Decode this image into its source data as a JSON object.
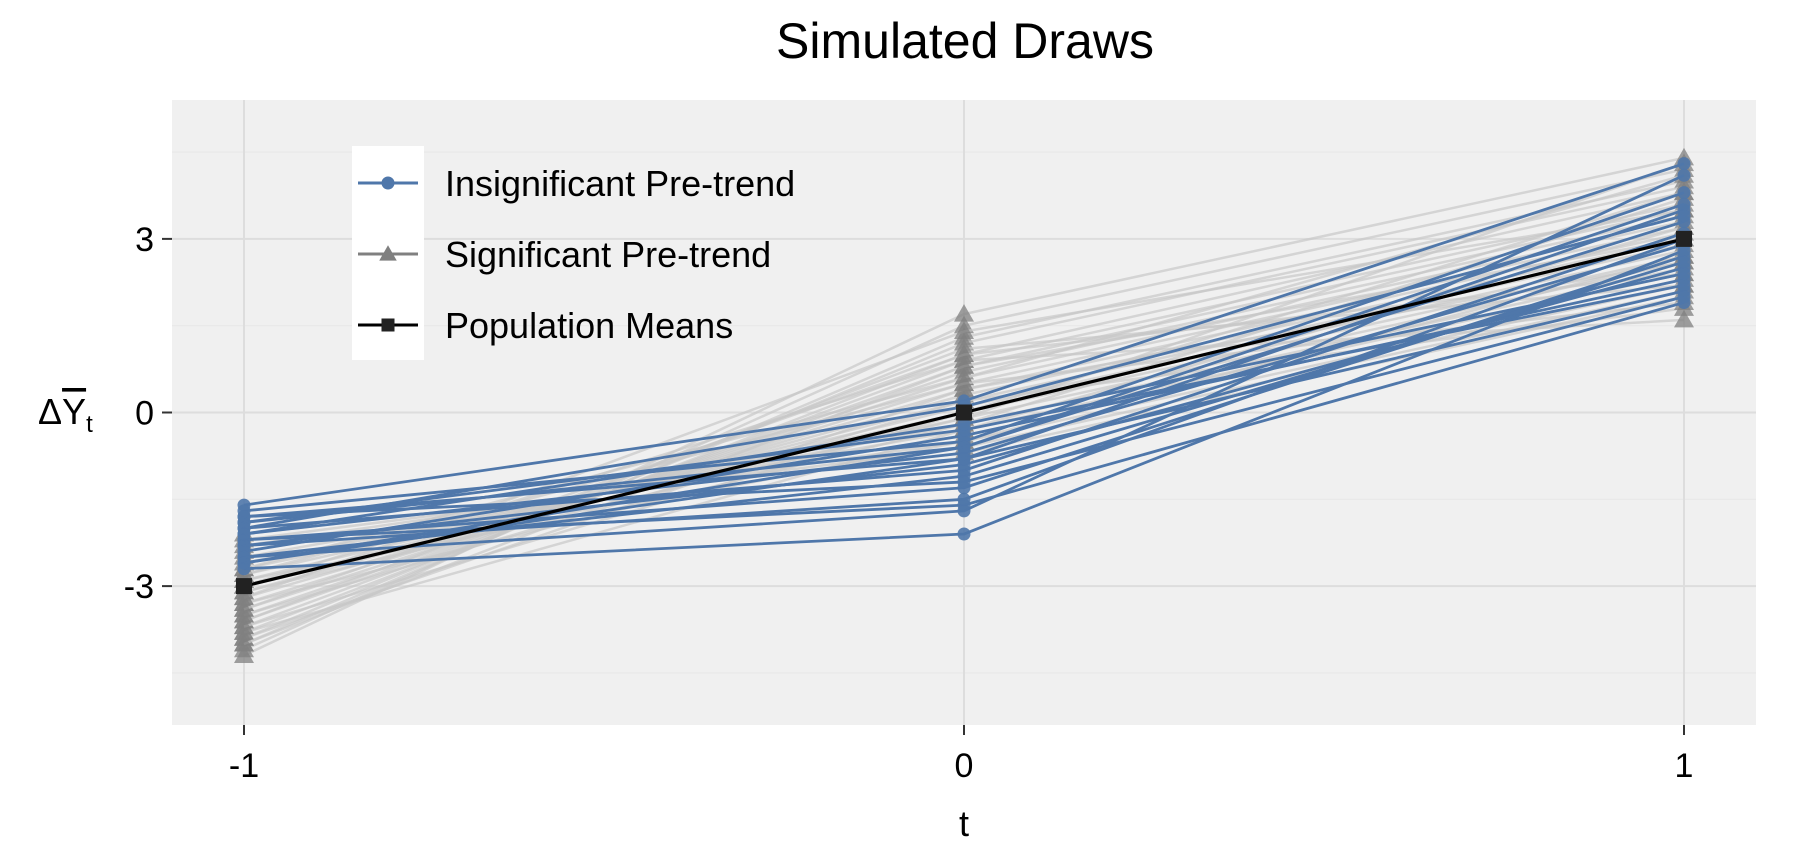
{
  "chart_data": {
    "type": "line",
    "title": "Simulated Draws",
    "xlabel": "t",
    "ylabel": "ΔY̅t",
    "x": [
      -1,
      0,
      1
    ],
    "x_tick_labels": [
      "-1",
      "0",
      "1"
    ],
    "y_tick_values": [
      -3,
      0,
      3
    ],
    "y_tick_labels": [
      "-3",
      "0",
      "3"
    ],
    "xlim": [
      -1.1,
      1.1
    ],
    "ylim": [
      -5.4,
      5.4
    ],
    "grid": true,
    "legend_position": "top-left",
    "colors": {
      "background": "#ffffff",
      "panel": "#f0f0f0",
      "grid_major": "#dddddd",
      "grid_minor": "#e8e8e8",
      "insignificant": "#4f77aa",
      "significant": "#808080",
      "significant_line": "#c8c8c8",
      "population": "#000000"
    },
    "legend": [
      {
        "label": "Insignificant Pre-trend",
        "key": "insignificant",
        "marker": "circle"
      },
      {
        "label": "Significant Pre-trend",
        "key": "significant",
        "marker": "triangle"
      },
      {
        "label": "Population Means",
        "key": "population",
        "marker": "square"
      }
    ],
    "series": [
      {
        "name": "Insignificant Pre-trend",
        "marker": "circle",
        "draws": [
          [
            -1.6,
            0.2,
            4.3
          ],
          [
            -1.7,
            -0.5,
            3.8
          ],
          [
            -1.8,
            -0.8,
            3.5
          ],
          [
            -1.9,
            -0.6,
            3.3
          ],
          [
            -2.0,
            -1.0,
            3.1
          ],
          [
            -2.1,
            -0.7,
            2.9
          ],
          [
            -2.2,
            -1.3,
            2.7
          ],
          [
            -2.3,
            -0.9,
            2.5
          ],
          [
            -2.4,
            -0.4,
            2.3
          ],
          [
            -2.5,
            -1.7,
            4.1
          ],
          [
            -2.6,
            -0.8,
            2.1
          ],
          [
            -2.7,
            -2.1,
            2.8
          ],
          [
            -2.2,
            -1.6,
            1.9
          ],
          [
            -2.0,
            0.1,
            3.4
          ],
          [
            -2.5,
            -1.1,
            2.6
          ],
          [
            -1.9,
            -0.3,
            2.2
          ],
          [
            -2.3,
            -1.5,
            3.0
          ],
          [
            -2.1,
            -0.2,
            2.4
          ],
          [
            -2.6,
            -0.6,
            3.6
          ],
          [
            -1.8,
            -1.2,
            2.0
          ]
        ]
      },
      {
        "name": "Significant Pre-trend",
        "marker": "triangle",
        "draws": [
          [
            -4.2,
            1.7,
            4.4
          ],
          [
            -4.1,
            1.5,
            4.2
          ],
          [
            -4.0,
            1.3,
            4.0
          ],
          [
            -3.9,
            1.2,
            3.9
          ],
          [
            -3.8,
            1.0,
            3.8
          ],
          [
            -3.7,
            0.9,
            3.6
          ],
          [
            -3.6,
            0.8,
            3.5
          ],
          [
            -3.5,
            0.7,
            3.4
          ],
          [
            -3.4,
            0.6,
            3.3
          ],
          [
            -3.3,
            0.5,
            3.2
          ],
          [
            -3.2,
            0.4,
            3.1
          ],
          [
            -3.1,
            0.3,
            3.0
          ],
          [
            -3.0,
            0.2,
            2.9
          ],
          [
            -2.9,
            0.1,
            2.8
          ],
          [
            -2.8,
            0.0,
            2.7
          ],
          [
            -2.7,
            -0.1,
            2.6
          ],
          [
            -2.6,
            -0.2,
            2.5
          ],
          [
            -2.5,
            -0.3,
            2.4
          ],
          [
            -2.4,
            -0.4,
            2.3
          ],
          [
            -2.3,
            -0.5,
            2.2
          ],
          [
            -2.2,
            -0.6,
            2.1
          ],
          [
            -2.1,
            -0.7,
            2.0
          ],
          [
            -3.9,
            0.4,
            2.6
          ],
          [
            -3.6,
            1.1,
            2.2
          ],
          [
            -3.3,
            -0.2,
            3.7
          ],
          [
            -3.0,
            0.9,
            1.6
          ],
          [
            -2.7,
            0.6,
            4.1
          ],
          [
            -3.8,
            -0.3,
            3.2
          ],
          [
            -3.5,
            0.2,
            1.8
          ],
          [
            -3.2,
            1.4,
            3.5
          ],
          [
            -2.9,
            -0.5,
            2.7
          ],
          [
            -4.0,
            0.8,
            3.0
          ],
          [
            -3.4,
            1.0,
            2.4
          ],
          [
            -3.1,
            -0.1,
            4.3
          ],
          [
            -2.8,
            0.5,
            1.9
          ],
          [
            -3.7,
            0.0,
            3.8
          ]
        ]
      },
      {
        "name": "Population Means",
        "marker": "square",
        "values": [
          -3,
          0,
          3
        ]
      }
    ]
  }
}
